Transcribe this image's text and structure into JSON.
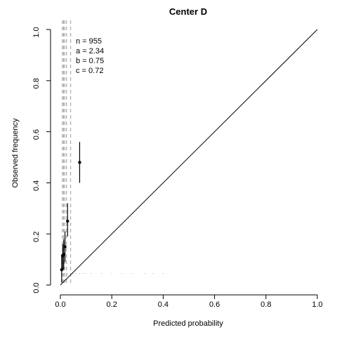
{
  "chart_data": {
    "type": "scatter",
    "title": "Center D",
    "xlabel": "Predicted probability",
    "ylabel": "Observed frequency",
    "xlim": [
      0,
      1
    ],
    "ylim": [
      0,
      1
    ],
    "x_ticks": [
      "0.0",
      "0.2",
      "0.4",
      "0.6",
      "0.8",
      "1.0"
    ],
    "y_ticks": [
      "0.0",
      "0.2",
      "0.4",
      "0.6",
      "0.8",
      "1.0"
    ],
    "grid": false,
    "stats": [
      "n = 955",
      "a = 2.34",
      "b = 0.75",
      "c = 0.72"
    ],
    "reference_line": {
      "x": [
        0,
        1
      ],
      "y": [
        0,
        1
      ]
    },
    "points": [
      {
        "x": 0.005,
        "y": 0.06,
        "lower": 0.01,
        "upper": 0.12
      },
      {
        "x": 0.009,
        "y": 0.115,
        "lower": 0.06,
        "upper": 0.16
      },
      {
        "x": 0.013,
        "y": 0.12,
        "lower": 0.06,
        "upper": 0.18
      },
      {
        "x": 0.018,
        "y": 0.15,
        "lower": 0.09,
        "upper": 0.21
      },
      {
        "x": 0.028,
        "y": 0.25,
        "lower": 0.19,
        "upper": 0.32
      },
      {
        "x": 0.075,
        "y": 0.48,
        "lower": 0.4,
        "upper": 0.56
      }
    ],
    "group_cutpoints": [
      0.008,
      0.012,
      0.017,
      0.024,
      0.04
    ],
    "rug_x": [
      0.005,
      0.009,
      0.013,
      0.018,
      0.028,
      0.04,
      0.05,
      0.06,
      0.075,
      0.09,
      0.1,
      0.12,
      0.16,
      0.2,
      0.24,
      0.28,
      0.33,
      0.36,
      0.4
    ]
  }
}
